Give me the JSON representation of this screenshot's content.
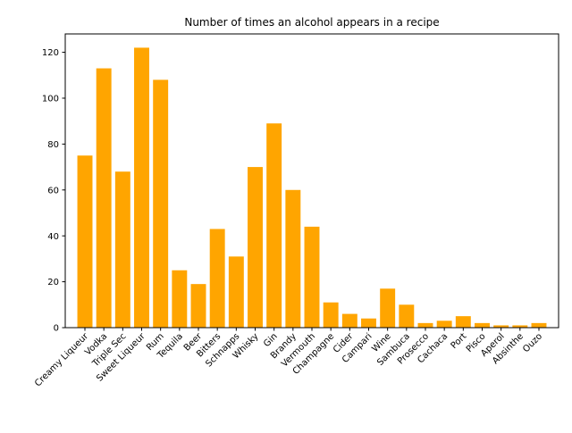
{
  "chart_data": {
    "type": "bar",
    "title": "Number of times an alcohol appears in a recipe",
    "xlabel": "",
    "ylabel": "",
    "categories": [
      "Creamy Liqueur",
      "Vodka",
      "Triple Sec",
      "Sweet Liqueur",
      "Rum",
      "Tequila",
      "Beer",
      "Bitters",
      "Schnapps",
      "Whisky",
      "Gin",
      "Brandy",
      "Vermouth",
      "Champagne",
      "Cider",
      "Campari",
      "Wine",
      "Sambuca",
      "Prosecco",
      "Cachaca",
      "Port",
      "Pisco",
      "Aperol",
      "Absinthe",
      "Ouzo"
    ],
    "values": [
      75,
      113,
      68,
      122,
      108,
      25,
      19,
      43,
      31,
      70,
      89,
      60,
      44,
      11,
      6,
      4,
      17,
      10,
      2,
      3,
      5,
      2,
      1,
      1,
      2
    ],
    "ylim": [
      0,
      128
    ],
    "yticks": [
      0,
      20,
      40,
      60,
      80,
      100,
      120
    ],
    "bar_color": "#ffa500",
    "grid": false,
    "legend": "none"
  }
}
